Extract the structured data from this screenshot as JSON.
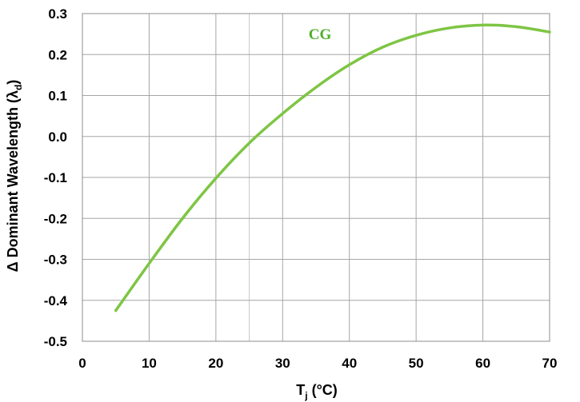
{
  "chart_data": {
    "type": "line",
    "title": "",
    "xlabel": "T",
    "xlabel_sub": "j",
    "xlabel_unit": " (°C)",
    "ylabel": "Δ Dominant Wavelength (λ",
    "ylabel_sub": "d",
    "ylabel_end": ")",
    "xlim": [
      0,
      70
    ],
    "ylim": [
      -0.5,
      0.3
    ],
    "x_ticks": [
      0,
      10,
      20,
      30,
      40,
      50,
      60,
      70
    ],
    "x_tick_labels": [
      "0",
      "10",
      "20",
      "30",
      "40",
      "50",
      "60",
      "70"
    ],
    "y_ticks": [
      0.3,
      0.2,
      0.1,
      0.0,
      -0.1,
      -0.2,
      -0.3,
      -0.4,
      -0.5
    ],
    "y_tick_labels": [
      "0.3",
      "0.2",
      "0.1",
      "0.0",
      "-0.1",
      "-0.2",
      "-0.3",
      "-0.4",
      "-0.5"
    ],
    "grid": true,
    "series": [
      {
        "name": "CG",
        "color": "#7ec544",
        "x": [
          5,
          10,
          15,
          20,
          25,
          30,
          35,
          40,
          45,
          50,
          55,
          60,
          65,
          70
        ],
        "y": [
          -0.425,
          -0.31,
          -0.2,
          -0.102,
          -0.016,
          0.056,
          0.12,
          0.175,
          0.218,
          0.247,
          0.265,
          0.272,
          0.268,
          0.255
        ]
      }
    ]
  }
}
